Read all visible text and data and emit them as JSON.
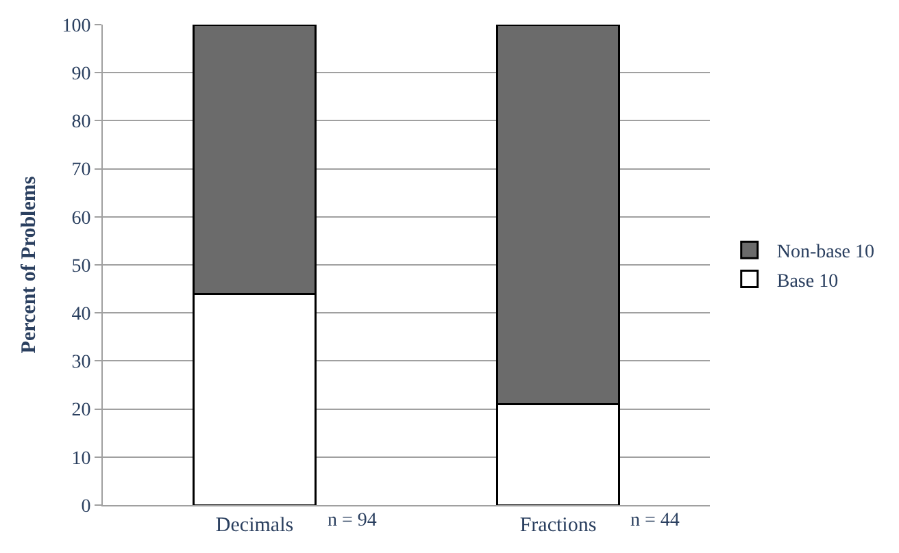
{
  "chart_data": {
    "type": "bar",
    "stacked": true,
    "ylabel": "Percent of Problems",
    "categories": [
      "Decimals",
      "Fractions"
    ],
    "series": [
      {
        "name": "Base 10",
        "color": "#ffffff",
        "values": [
          44,
          21
        ]
      },
      {
        "name": "Non-base 10",
        "color": "#6b6b6b",
        "values": [
          56,
          79
        ]
      }
    ],
    "ylim": [
      0,
      100
    ],
    "yticks": [
      0,
      10,
      20,
      30,
      40,
      50,
      60,
      70,
      80,
      90,
      100
    ],
    "grid": "y",
    "legend": "right",
    "annotations": [
      "n = 94",
      "n = 44"
    ]
  }
}
